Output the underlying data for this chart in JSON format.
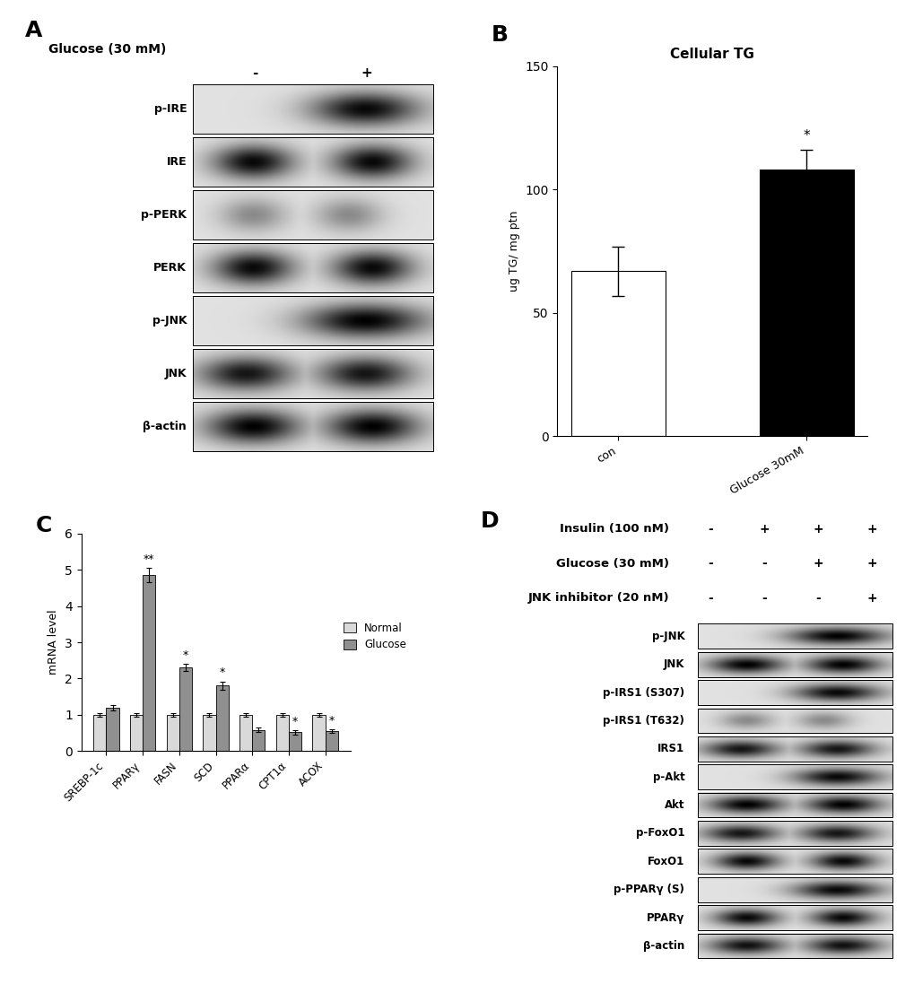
{
  "panel_A": {
    "label": "A",
    "title_text": "Glucose (30 mM)",
    "conditions": [
      "-",
      "+"
    ],
    "bands": [
      "p-IRE",
      "IRE",
      "p-PERK",
      "PERK",
      "p-JNK",
      "JNK",
      "β-actin"
    ],
    "band_images": [
      [
        [
          0.85,
          0.82,
          0.8,
          0.78,
          0.76,
          0.74,
          0.5,
          0.3,
          0.2,
          0.18,
          0.16,
          0.15,
          0.14,
          0.15,
          0.18,
          0.2,
          0.22,
          0.2,
          0.18,
          0.15,
          0.25,
          0.45,
          0.65,
          0.75,
          0.82,
          0.85,
          0.87,
          0.88,
          0.87,
          0.86
        ]
      ],
      [
        [
          0.85,
          0.8,
          0.6,
          0.3,
          0.15,
          0.1,
          0.08,
          0.07,
          0.08,
          0.1,
          0.12,
          0.15,
          0.2,
          0.25,
          0.3,
          0.4,
          0.55,
          0.7,
          0.8,
          0.82,
          0.8,
          0.6,
          0.3,
          0.15,
          0.1,
          0.08,
          0.08,
          0.1,
          0.12,
          0.85
        ]
      ],
      [
        [
          0.92,
          0.9,
          0.85,
          0.75,
          0.65,
          0.6,
          0.58,
          0.57,
          0.58,
          0.6,
          0.65,
          0.7,
          0.75,
          0.8,
          0.83,
          0.85,
          0.87,
          0.86,
          0.85,
          0.84,
          0.75,
          0.65,
          0.6,
          0.58,
          0.57,
          0.58,
          0.6,
          0.65,
          0.75,
          0.92
        ]
      ],
      [
        [
          0.85,
          0.7,
          0.4,
          0.15,
          0.08,
          0.06,
          0.05,
          0.06,
          0.08,
          0.12,
          0.2,
          0.35,
          0.55,
          0.7,
          0.78,
          0.8,
          0.78,
          0.6,
          0.35,
          0.15,
          0.08,
          0.06,
          0.05,
          0.06,
          0.08,
          0.12,
          0.2,
          0.4,
          0.65,
          0.85
        ]
      ],
      [
        [
          0.9,
          0.88,
          0.85,
          0.8,
          0.75,
          0.7,
          0.65,
          0.62,
          0.6,
          0.58,
          0.55,
          0.52,
          0.5,
          0.48,
          0.45,
          0.2,
          0.1,
          0.05,
          0.08,
          0.15,
          0.25,
          0.4,
          0.55,
          0.65,
          0.72,
          0.78,
          0.82,
          0.85,
          0.87,
          0.88
        ]
      ],
      [
        [
          0.8,
          0.5,
          0.2,
          0.08,
          0.05,
          0.04,
          0.03,
          0.04,
          0.05,
          0.08,
          0.15,
          0.3,
          0.5,
          0.65,
          0.72,
          0.75,
          0.72,
          0.55,
          0.25,
          0.08,
          0.05,
          0.04,
          0.03,
          0.04,
          0.06,
          0.1,
          0.18,
          0.3,
          0.5,
          0.75
        ]
      ],
      [
        [
          0.8,
          0.55,
          0.25,
          0.1,
          0.06,
          0.05,
          0.04,
          0.05,
          0.06,
          0.1,
          0.2,
          0.38,
          0.58,
          0.72,
          0.78,
          0.8,
          0.78,
          0.6,
          0.3,
          0.1,
          0.06,
          0.05,
          0.04,
          0.05,
          0.07,
          0.12,
          0.22,
          0.4,
          0.62,
          0.8
        ]
      ]
    ]
  },
  "panel_B": {
    "label": "B",
    "title": "Cellular TG",
    "ylabel": "ug TG/ mg ptn",
    "categories": [
      "con",
      "Glucose 30mM"
    ],
    "values": [
      67,
      108
    ],
    "errors": [
      10,
      8
    ],
    "colors": [
      "white",
      "black"
    ],
    "ylim": [
      0,
      150
    ],
    "yticks": [
      0,
      50,
      100,
      150
    ],
    "significance": [
      "",
      "*"
    ]
  },
  "panel_C": {
    "label": "C",
    "ylabel": "mRNA level",
    "ylim": [
      0.0,
      6.0
    ],
    "yticks": [
      0.0,
      1.0,
      2.0,
      3.0,
      4.0,
      5.0,
      6.0
    ],
    "categories": [
      "SREBP-1c",
      "PPARγ",
      "FASN",
      "SCD",
      "PPARα",
      "CPT1α",
      "ACOX"
    ],
    "normal_values": [
      1.0,
      1.0,
      1.0,
      1.0,
      1.0,
      1.0,
      1.0
    ],
    "normal_errors": [
      0.05,
      0.05,
      0.05,
      0.05,
      0.05,
      0.05,
      0.05
    ],
    "glucose_values": [
      1.2,
      4.85,
      2.3,
      1.8,
      0.58,
      0.52,
      0.55
    ],
    "glucose_errors": [
      0.08,
      0.2,
      0.1,
      0.12,
      0.06,
      0.06,
      0.05
    ],
    "significance": [
      "",
      "**",
      "*",
      "*",
      "",
      "*",
      "*"
    ],
    "normal_color": "#d9d9d9",
    "glucose_color": "#909090",
    "legend_labels": [
      "Normal",
      "Glucose"
    ]
  },
  "panel_D": {
    "label": "D",
    "treatment_rows": [
      {
        "label": "Insulin (100 nM)",
        "values": [
          "-",
          "+",
          "+",
          "+"
        ]
      },
      {
        "label": "Glucose (30 mM)",
        "values": [
          "-",
          "-",
          "+",
          "+"
        ]
      },
      {
        "label": "JNK inhibitor (20 nM)",
        "values": [
          "-",
          "-",
          "-",
          "+"
        ]
      }
    ],
    "bands": [
      "p-JNK",
      "JNK",
      "p-IRS1 (S307)",
      "p-IRS1 (T632)",
      "IRS1",
      "p-Akt",
      "Akt",
      "p-FoxO1",
      "FoxO1",
      "p-PPARγ (S)",
      "PPARγ",
      "β-actin"
    ]
  },
  "background_color": "#ffffff"
}
